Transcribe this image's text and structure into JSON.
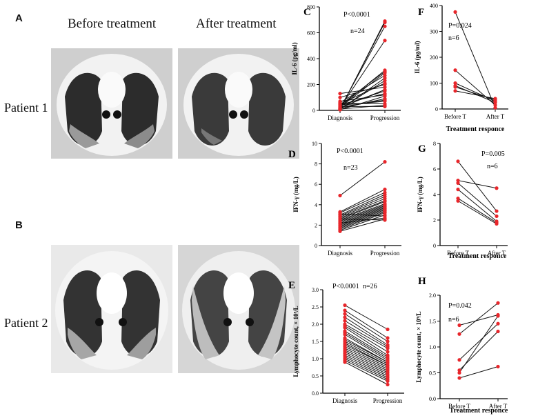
{
  "left": {
    "panel_a": "A",
    "panel_b": "B",
    "col_before": "Before treatment",
    "col_after": "After treatment",
    "patient1": "Patient 1",
    "patient2": "Patient 2"
  },
  "chart_data": [
    {
      "id": "C",
      "type": "paired-scatter",
      "ylabel": "IL-6 (pg/ml)",
      "categories": [
        "Diagnosis",
        "Progression"
      ],
      "ylim": [
        0,
        800
      ],
      "yticks": [
        0,
        200,
        400,
        600,
        800
      ],
      "annotations": [
        "P<0.0001",
        "n=24"
      ],
      "pairs": [
        [
          5,
          690
        ],
        [
          10,
          680
        ],
        [
          15,
          650
        ],
        [
          20,
          540
        ],
        [
          30,
          310
        ],
        [
          40,
          300
        ],
        [
          25,
          290
        ],
        [
          60,
          270
        ],
        [
          8,
          250
        ],
        [
          12,
          230
        ],
        [
          50,
          210
        ],
        [
          100,
          200
        ],
        [
          130,
          180
        ],
        [
          20,
          160
        ],
        [
          35,
          150
        ],
        [
          45,
          130
        ],
        [
          70,
          120
        ],
        [
          5,
          110
        ],
        [
          15,
          90
        ],
        [
          25,
          80
        ],
        [
          40,
          70
        ],
        [
          55,
          50
        ],
        [
          10,
          40
        ],
        [
          30,
          30
        ]
      ]
    },
    {
      "id": "F",
      "type": "paired-scatter",
      "ylabel": "IL-6 (pg/ml)",
      "xlabel": "Treatment responce",
      "categories": [
        "Before T",
        "After T"
      ],
      "ylim": [
        0,
        400
      ],
      "yticks": [
        0,
        100,
        200,
        300,
        400
      ],
      "annotations": [
        "P=0.024",
        "n=6"
      ],
      "pairs": [
        [
          375,
          5
        ],
        [
          150,
          15
        ],
        [
          100,
          30
        ],
        [
          90,
          25
        ],
        [
          85,
          35
        ],
        [
          70,
          40
        ]
      ]
    },
    {
      "id": "D",
      "type": "paired-scatter",
      "ylabel": "IFN-γ (mg/L)",
      "categories": [
        "Diagnosis",
        "Progression"
      ],
      "ylim": [
        0,
        10
      ],
      "yticks": [
        0,
        2,
        4,
        6,
        8,
        10
      ],
      "annotations": [
        "P<0.0001",
        "n=23"
      ],
      "pairs": [
        [
          4.9,
          8.2
        ],
        [
          3.3,
          5.5
        ],
        [
          3.2,
          5.2
        ],
        [
          3.0,
          5.0
        ],
        [
          2.9,
          4.8
        ],
        [
          2.8,
          4.6
        ],
        [
          2.7,
          4.4
        ],
        [
          2.6,
          4.3
        ],
        [
          2.5,
          4.1
        ],
        [
          2.4,
          4.0
        ],
        [
          2.3,
          3.9
        ],
        [
          2.2,
          3.8
        ],
        [
          2.1,
          3.7
        ],
        [
          2.0,
          3.6
        ],
        [
          1.9,
          3.5
        ],
        [
          1.8,
          3.4
        ],
        [
          1.7,
          3.3
        ],
        [
          1.6,
          3.2
        ],
        [
          1.5,
          3.0
        ],
        [
          3.1,
          2.9
        ],
        [
          2.2,
          2.7
        ],
        [
          1.4,
          2.6
        ],
        [
          2.6,
          2.5
        ]
      ]
    },
    {
      "id": "G",
      "type": "paired-scatter",
      "ylabel": "IFN-γ (mg/L)",
      "xlabel": "Treatment responce",
      "categories": [
        "Before T",
        "After T"
      ],
      "ylim": [
        0,
        8
      ],
      "yticks": [
        0,
        2,
        4,
        6,
        8
      ],
      "annotations": [
        "P=0.005",
        "n=6"
      ],
      "pairs": [
        [
          6.6,
          2.7
        ],
        [
          5.1,
          4.5
        ],
        [
          4.9,
          2.3
        ],
        [
          4.4,
          1.9
        ],
        [
          3.7,
          1.8
        ],
        [
          3.5,
          1.7
        ]
      ]
    },
    {
      "id": "E",
      "type": "paired-scatter",
      "ylabel": "Lymphocyte count, × 10⁹/L",
      "categories": [
        "Diagnosis",
        "Progression"
      ],
      "ylim": [
        0,
        3.0
      ],
      "yticks": [
        0.0,
        0.5,
        1.0,
        1.5,
        2.0,
        2.5,
        3.0
      ],
      "annotations": [
        "P<0.0001",
        "n=26"
      ],
      "pairs": [
        [
          2.55,
          1.85
        ],
        [
          2.4,
          1.6
        ],
        [
          2.3,
          1.5
        ],
        [
          2.2,
          1.4
        ],
        [
          2.1,
          1.35
        ],
        [
          2.0,
          1.3
        ],
        [
          1.95,
          1.2
        ],
        [
          1.9,
          1.1
        ],
        [
          1.8,
          1.05
        ],
        [
          1.75,
          1.0
        ],
        [
          1.7,
          0.95
        ],
        [
          1.6,
          0.9
        ],
        [
          1.55,
          0.9
        ],
        [
          1.5,
          0.85
        ],
        [
          1.45,
          0.8
        ],
        [
          1.4,
          0.8
        ],
        [
          1.35,
          0.75
        ],
        [
          1.3,
          0.7
        ],
        [
          1.25,
          0.65
        ],
        [
          1.2,
          0.6
        ],
        [
          1.15,
          0.55
        ],
        [
          1.1,
          0.5
        ],
        [
          1.05,
          0.45
        ],
        [
          1.0,
          0.4
        ],
        [
          0.95,
          0.35
        ],
        [
          0.9,
          0.25
        ]
      ]
    },
    {
      "id": "H",
      "type": "paired-scatter",
      "ylabel": "Lymphocyte count, × 10⁹/L",
      "xlabel": "Treatment responce",
      "categories": [
        "Before T",
        "After T"
      ],
      "ylim": [
        0.0,
        2.0
      ],
      "yticks": [
        0.0,
        0.5,
        1.0,
        1.5,
        2.0
      ],
      "annotations": [
        "P=0.042",
        "n=6"
      ],
      "pairs": [
        [
          1.42,
          1.62
        ],
        [
          1.25,
          1.85
        ],
        [
          0.75,
          1.45
        ],
        [
          0.55,
          1.3
        ],
        [
          0.5,
          1.6
        ],
        [
          0.4,
          0.62
        ]
      ]
    }
  ]
}
